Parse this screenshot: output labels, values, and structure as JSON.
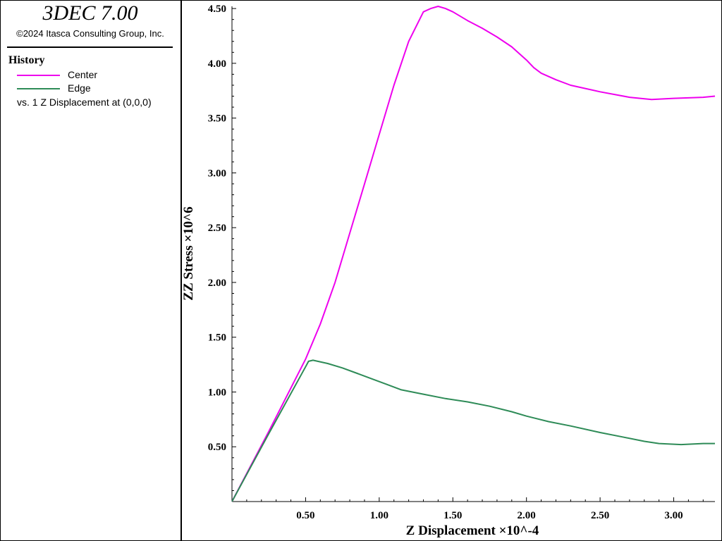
{
  "header": {
    "app_title": "3DEC 7.00",
    "copyright": "©2024 Itasca Consulting Group, Inc."
  },
  "legend": {
    "heading": "History",
    "subtitle": "vs. 1 Z Displacement at (0,0,0)"
  },
  "colors": {
    "center": "#ee00ee",
    "edge": "#2e8b57",
    "axis": "#000000"
  },
  "chart_data": {
    "type": "line",
    "title": "",
    "xlabel": "Z Displacement ×10^-4",
    "ylabel": "ZZ Stress ×10^6",
    "xlim": [
      0,
      3.28
    ],
    "ylim": [
      0,
      4.52
    ],
    "x_ticks": [
      "0.50",
      "1.00",
      "1.50",
      "2.00",
      "2.50",
      "3.00"
    ],
    "y_ticks": [
      "0.50",
      "1.00",
      "1.50",
      "2.00",
      "2.50",
      "3.00",
      "3.50",
      "4.00",
      "4.50"
    ],
    "grid": false,
    "legend_position": "left-panel",
    "series": [
      {
        "name": "Center",
        "x": [
          0,
          0.25,
          0.5,
          0.6,
          0.7,
          0.8,
          0.9,
          1.0,
          1.1,
          1.2,
          1.3,
          1.35,
          1.4,
          1.45,
          1.5,
          1.6,
          1.7,
          1.8,
          1.9,
          1.95,
          2.0,
          2.05,
          2.1,
          2.2,
          2.3,
          2.5,
          2.7,
          2.85,
          3.0,
          3.2,
          3.28
        ],
        "values": [
          0,
          0.64,
          1.3,
          1.62,
          2.0,
          2.45,
          2.9,
          3.35,
          3.8,
          4.2,
          4.47,
          4.5,
          4.52,
          4.5,
          4.47,
          4.39,
          4.32,
          4.24,
          4.15,
          4.09,
          4.03,
          3.96,
          3.91,
          3.85,
          3.8,
          3.74,
          3.69,
          3.67,
          3.68,
          3.69,
          3.7
        ]
      },
      {
        "name": "Edge",
        "x": [
          0,
          0.25,
          0.5,
          0.52,
          0.55,
          0.65,
          0.75,
          0.85,
          0.95,
          1.05,
          1.15,
          1.3,
          1.45,
          1.6,
          1.75,
          1.9,
          2.0,
          2.15,
          2.3,
          2.5,
          2.65,
          2.8,
          2.9,
          3.05,
          3.2,
          3.28
        ],
        "values": [
          0,
          0.62,
          1.23,
          1.28,
          1.29,
          1.26,
          1.22,
          1.17,
          1.12,
          1.07,
          1.02,
          0.98,
          0.94,
          0.91,
          0.87,
          0.82,
          0.78,
          0.73,
          0.69,
          0.63,
          0.59,
          0.55,
          0.53,
          0.52,
          0.53,
          0.53
        ]
      }
    ]
  }
}
